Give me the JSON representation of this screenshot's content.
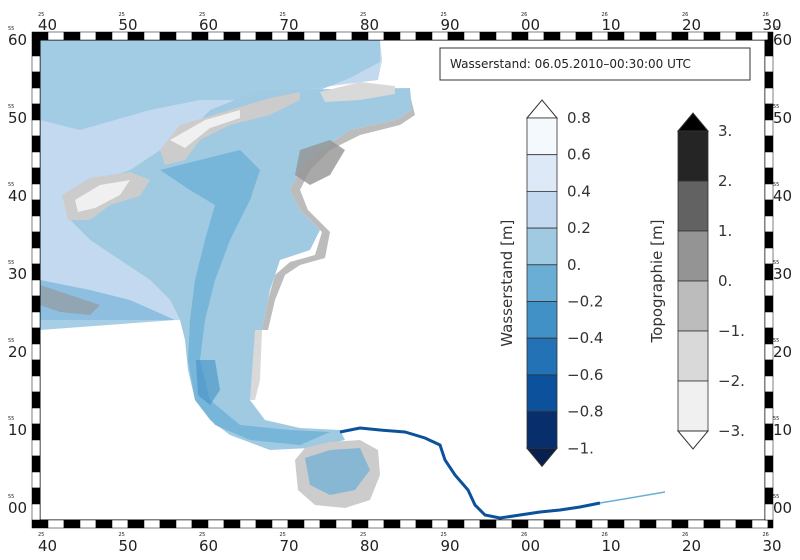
{
  "title": "Wasserstand: 06.05.2010–00:30:00 UTC",
  "frame": {
    "x_labels": [
      "40",
      "50",
      "60",
      "70",
      "80",
      "90",
      "00",
      "10",
      "20",
      "30"
    ],
    "x_minor_labels": [
      "25",
      "25",
      "25",
      "25",
      "25",
      "25",
      "26",
      "26",
      "26",
      "26"
    ],
    "y_labels": [
      "60",
      "50",
      "40",
      "30",
      "20",
      "10",
      "00"
    ],
    "y_minor_labels": [
      "55",
      "55",
      "55",
      "55",
      "55",
      "55",
      "55"
    ]
  },
  "colorbars": [
    {
      "name": "water-level",
      "label": "Wasserstand [m]",
      "ticks": [
        "0.8",
        "0.6",
        "0.4",
        "0.2",
        "0.",
        "−0.2",
        "−0.4",
        "−0.6",
        "−0.8",
        "−1."
      ],
      "colors": [
        "#f4f9fe",
        "#dde9f6",
        "#c3d9ef",
        "#9fcae1",
        "#6aaed6",
        "#4291c6",
        "#2272b5",
        "#0b519c",
        "#082f6b"
      ],
      "top_color": "#ffffff",
      "bottom_color": "#082050"
    },
    {
      "name": "topography",
      "label": "Topographie [m]",
      "ticks": [
        "3.",
        "2.",
        "1.",
        "0.",
        "−1.",
        "−2.",
        "−3."
      ],
      "colors": [
        "#252525",
        "#626262",
        "#949494",
        "#bcbcbc",
        "#d9d9d9",
        "#f0f0f0"
      ],
      "top_color": "#000000",
      "bottom_color": "#ffffff"
    }
  ],
  "palette": {
    "sea_light": "#c3d9ef",
    "sea_mid": "#9fcae1",
    "sea_deep": "#6aaed6",
    "channel": "#4291c6",
    "river": "#0b519c",
    "land_grey": "#cccccc",
    "land_dark": "#949494"
  }
}
